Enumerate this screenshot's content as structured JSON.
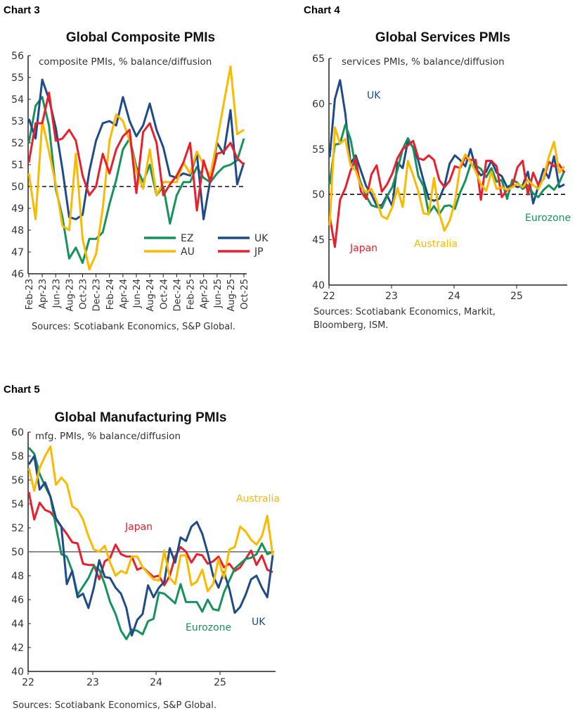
{
  "colors": {
    "EZ": "#17925c",
    "UK": "#1f4b88",
    "AU": "#fbb900",
    "JP": "#e8202e",
    "ref": "#222222"
  },
  "chart_data": [
    {
      "label": "Chart 3",
      "type": "line",
      "title": "Global Composite PMIs",
      "subtitle": "composite PMIs, % balance/diffusion",
      "source": "Sources: Scotiabank Economics, S&P Global.",
      "ylim": [
        46,
        56
      ],
      "yticks": [
        "46",
        "47",
        "48",
        "49",
        "50",
        "51",
        "52",
        "53",
        "54",
        "55",
        "56"
      ],
      "reference_line": {
        "y": 50,
        "style": "dashed"
      },
      "xticks": [
        "Feb-23",
        "Apr-23",
        "Jun-23",
        "Aug-23",
        "Oct-23",
        "Dec-23",
        "Feb-24",
        "Apr-24",
        "Jun-24",
        "Aug-24",
        "Oct-24",
        "Dec-24",
        "Feb-25",
        "Apr-25",
        "Jun-25",
        "Aug-25",
        "Oct-25"
      ],
      "x_start": "Feb-23",
      "x_end": "Oct-25",
      "frequency": "monthly",
      "legend": "bottom-right",
      "series": [
        {
          "name": "EZ",
          "color_key": "EZ",
          "values": [
            52.0,
            53.7,
            54.1,
            52.8,
            49.9,
            48.6,
            46.7,
            47.2,
            46.5,
            47.6,
            47.6,
            47.9,
            49.2,
            50.3,
            51.7,
            52.2,
            50.9,
            50.2,
            51.0,
            49.6,
            50.0,
            48.3,
            49.6,
            50.2,
            50.2,
            50.9,
            50.4,
            50.2,
            50.6,
            50.9,
            51.0,
            51.2,
            52.2
          ]
        },
        {
          "name": "UK",
          "color_key": "UK",
          "values": [
            53.1,
            52.2,
            54.9,
            54.0,
            52.7,
            50.8,
            48.6,
            48.5,
            48.7,
            50.7,
            52.1,
            52.9,
            53.0,
            52.8,
            54.1,
            53.0,
            52.3,
            52.8,
            53.8,
            52.6,
            51.8,
            50.5,
            50.4,
            50.6,
            50.5,
            51.5,
            48.5,
            50.3,
            52.0,
            51.5,
            53.5,
            50.1,
            51.1
          ]
        },
        {
          "name": "AU",
          "color_key": "AU",
          "values": [
            50.6,
            48.5,
            53.0,
            51.6,
            50.1,
            48.2,
            48.0,
            51.5,
            47.6,
            46.2,
            46.9,
            49.0,
            52.1,
            53.3,
            53.0,
            52.1,
            50.7,
            49.9,
            51.7,
            49.6,
            50.2,
            50.2,
            50.2,
            51.1,
            50.6,
            51.6,
            51.0,
            50.5,
            52.1,
            53.8,
            55.5,
            52.4,
            52.6
          ]
        },
        {
          "name": "JP",
          "color_key": "JP",
          "values": [
            51.1,
            52.9,
            52.9,
            54.3,
            52.1,
            52.2,
            52.6,
            52.1,
            50.5,
            49.6,
            50.0,
            51.5,
            50.6,
            51.7,
            52.3,
            52.6,
            49.7,
            52.5,
            52.9,
            52.0,
            49.6,
            50.1,
            50.5,
            51.1,
            52.0,
            48.9,
            51.2,
            50.2,
            51.5,
            51.6,
            52.0,
            51.3,
            51.0
          ]
        }
      ]
    },
    {
      "label": "Chart 4",
      "type": "line",
      "title": "Global Services PMIs",
      "subtitle": "services PMIs, % balance/diffusion",
      "source": "Sources: Scotiabank Economics, Markit,\nBloomberg, ISM.",
      "source_lines": [
        "Sources: Scotiabank Economics, Markit,",
        "Bloomberg, ISM."
      ],
      "ylim": [
        40,
        65
      ],
      "yticks": [
        "40",
        "45",
        "50",
        "55",
        "60",
        "65"
      ],
      "reference_line": {
        "y": 50,
        "style": "dashed"
      },
      "xticks": [
        "22",
        "23",
        "24",
        "25"
      ],
      "x_start": "Jan-22",
      "x_end": "Oct-25",
      "frequency": "monthly",
      "series": [
        {
          "name": "UK",
          "color_key": "UK",
          "values": [
            54.1,
            60.5,
            62.6,
            58.9,
            53.4,
            54.3,
            52.6,
            50.9,
            50.0,
            48.8,
            48.8,
            49.9,
            48.7,
            53.5,
            52.9,
            55.9,
            55.2,
            53.7,
            51.5,
            49.5,
            49.3,
            49.5,
            50.9,
            53.4,
            54.3,
            53.8,
            53.1,
            55.0,
            52.9,
            52.1,
            52.5,
            53.7,
            52.4,
            52.0,
            50.8,
            51.1,
            50.8,
            51.0,
            52.5,
            49.0,
            50.9,
            52.8,
            51.8,
            54.2,
            50.8,
            51.1
          ]
        },
        {
          "name": "Eurozone",
          "color_key": "EZ",
          "values": [
            51.1,
            55.5,
            55.6,
            57.7,
            56.1,
            53.0,
            51.2,
            49.8,
            48.8,
            48.6,
            48.5,
            49.8,
            50.8,
            52.7,
            55.0,
            56.2,
            55.1,
            52.0,
            50.9,
            47.9,
            48.7,
            47.8,
            48.7,
            48.8,
            48.4,
            50.2,
            51.5,
            53.3,
            53.2,
            52.8,
            51.9,
            52.9,
            51.4,
            51.6,
            49.5,
            51.6,
            51.3,
            50.6,
            51.0,
            50.1,
            49.7,
            50.5,
            51.0,
            50.5,
            51.3,
            52.6
          ]
        },
        {
          "name": "Japan",
          "color_key": "JP",
          "values": [
            47.6,
            44.2,
            49.4,
            50.7,
            52.6,
            54.0,
            50.3,
            49.5,
            52.2,
            53.2,
            50.3,
            51.1,
            52.3,
            54.0,
            55.0,
            55.4,
            55.9,
            54.0,
            53.8,
            54.3,
            53.8,
            51.6,
            50.8,
            51.5,
            53.1,
            52.9,
            54.1,
            53.8,
            53.8,
            49.4,
            53.7,
            53.7,
            53.1,
            49.7,
            50.5,
            50.9,
            53.0,
            53.7,
            50.0,
            52.4,
            51.0,
            51.7,
            53.6,
            53.1,
            53.3,
            52.4
          ]
        },
        {
          "name": "Australia",
          "color_key": "AU",
          "values": [
            46.6,
            57.4,
            55.6,
            56.1,
            53.2,
            52.6,
            50.9,
            50.2,
            50.6,
            49.3,
            47.6,
            47.3,
            48.6,
            50.7,
            48.6,
            53.7,
            52.1,
            50.3,
            47.9,
            47.8,
            51.8,
            47.9,
            46.0,
            47.1,
            49.1,
            53.1,
            54.4,
            53.6,
            52.5,
            51.1,
            50.4,
            52.5,
            50.6,
            50.8,
            50.5,
            50.8,
            51.2,
            50.8,
            51.6,
            51.0,
            50.6,
            51.8,
            54.1,
            55.8,
            52.4,
            53.1
          ]
        }
      ]
    },
    {
      "label": "Chart 5",
      "type": "line",
      "title": "Global Manufacturing PMIs",
      "subtitle": "mfg. PMIs, % balance/diffusion",
      "source": "Sources: Scotiabank Economics, S&P Global.",
      "ylim": [
        40,
        60
      ],
      "yticks": [
        "40",
        "42",
        "44",
        "46",
        "48",
        "50",
        "52",
        "54",
        "56",
        "58",
        "60"
      ],
      "reference_line": {
        "y": 50,
        "style": "solid"
      },
      "xticks": [
        "22",
        "23",
        "24",
        "25"
      ],
      "x_start": "Jan-22",
      "x_end": "Oct-25",
      "frequency": "monthly",
      "series": [
        {
          "name": "Japan",
          "color_key": "JP",
          "values": [
            55.0,
            52.7,
            54.1,
            53.5,
            53.3,
            52.7,
            52.1,
            51.5,
            50.8,
            50.7,
            49.0,
            48.9,
            48.9,
            47.7,
            49.2,
            49.5,
            50.6,
            49.8,
            49.6,
            49.6,
            48.5,
            48.7,
            48.3,
            47.9,
            48.0,
            47.2,
            48.0,
            49.6,
            50.4,
            50.0,
            49.1,
            49.8,
            49.7,
            49.0,
            49.2,
            49.6,
            48.7,
            49.0,
            48.4,
            48.7,
            49.4,
            50.1,
            48.9,
            49.7,
            48.5,
            48.3
          ]
        },
        {
          "name": "Eurozone",
          "color_key": "EZ",
          "values": [
            58.7,
            58.2,
            56.5,
            55.5,
            54.6,
            52.1,
            49.8,
            49.6,
            48.4,
            46.4,
            47.1,
            47.8,
            48.8,
            48.5,
            47.3,
            45.8,
            44.8,
            43.4,
            42.7,
            43.5,
            43.4,
            43.1,
            44.2,
            44.4,
            46.6,
            46.5,
            46.1,
            45.7,
            47.3,
            45.8,
            45.8,
            45.8,
            45.0,
            46.0,
            45.2,
            45.1,
            46.6,
            47.6,
            48.6,
            49.0,
            49.4,
            49.5,
            49.8,
            50.7,
            49.8,
            50.0
          ]
        },
        {
          "name": "UK",
          "color_key": "UK",
          "values": [
            57.3,
            58.0,
            55.2,
            55.8,
            54.6,
            52.8,
            52.1,
            47.3,
            48.4,
            46.2,
            46.5,
            45.3,
            47.0,
            49.3,
            47.9,
            47.8,
            47.0,
            46.5,
            45.3,
            43.0,
            44.3,
            44.8,
            47.2,
            46.2,
            47.0,
            47.5,
            50.3,
            49.1,
            51.2,
            50.9,
            52.1,
            52.5,
            51.5,
            49.9,
            48.0,
            47.0,
            48.3,
            46.9,
            44.9,
            45.4,
            46.4,
            47.7,
            48.0,
            47.0,
            46.2,
            49.7
          ]
        },
        {
          "name": "Australia",
          "color_key": "AU",
          "values": [
            57.0,
            55.1,
            57.0,
            58.0,
            58.8,
            55.6,
            56.2,
            55.7,
            53.8,
            53.5,
            52.7,
            51.3,
            50.2,
            50.0,
            50.5,
            49.1,
            48.0,
            48.4,
            48.2,
            49.6,
            49.6,
            48.7,
            48.2,
            47.7,
            47.6,
            50.1,
            47.8,
            47.3,
            49.7,
            49.7,
            47.2,
            47.5,
            48.5,
            46.7,
            47.3,
            49.4,
            47.8,
            50.2,
            50.4,
            52.1,
            51.7,
            51.0,
            50.6,
            51.3,
            53.0,
            49.7
          ]
        }
      ]
    }
  ]
}
